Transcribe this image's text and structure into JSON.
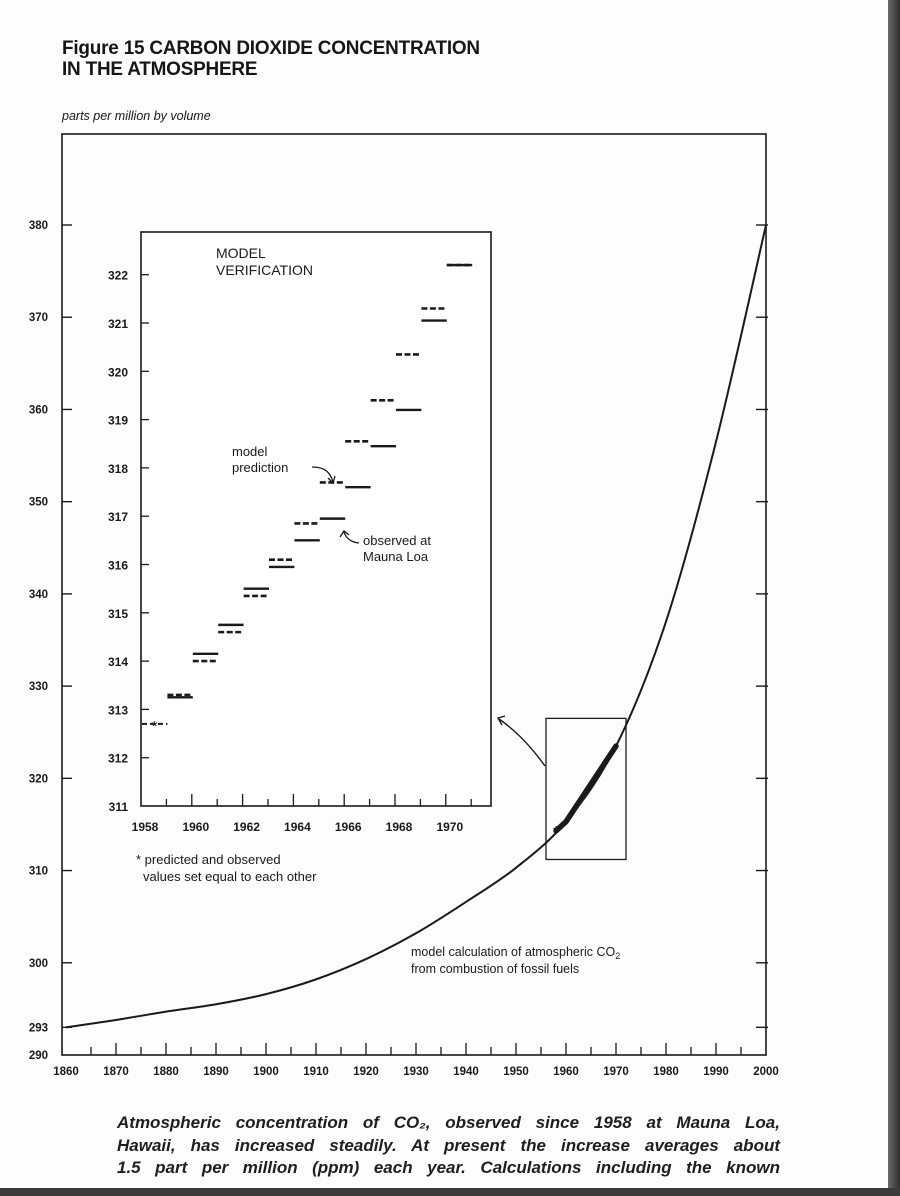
{
  "figure": {
    "title_line1": "Figure 15 CARBON DIOXIDE CONCENTRATION",
    "title_line2": "IN THE ATMOSPHERE",
    "subtitle": "parts per million by volume"
  },
  "caption": {
    "lines": [
      "Atmospheric concentration of CO₂, observed since 1958 at Mauna Loa,",
      "Hawaii, has increased steadily. At present the increase averages about",
      "1.5 part per million (ppm) each year. Calculations including the known"
    ]
  },
  "chart_data": [
    {
      "type": "line",
      "ylabel": "parts per million by volume",
      "xlim": [
        1860,
        2000
      ],
      "ylim": [
        290,
        380
      ],
      "x_ticks": [
        1860,
        1870,
        1880,
        1890,
        1900,
        1910,
        1920,
        1930,
        1940,
        1950,
        1960,
        1970,
        1980,
        1990,
        2000
      ],
      "y_ticks": [
        290,
        293,
        300,
        310,
        320,
        330,
        340,
        350,
        360,
        370,
        380
      ],
      "grid": false,
      "series": [
        {
          "name": "model calculation of atmospheric CO₂ from combustion of fossil fuels",
          "x": [
            1860,
            1870,
            1880,
            1890,
            1900,
            1910,
            1920,
            1930,
            1940,
            1950,
            1960,
            1970,
            1980,
            1990,
            2000
          ],
          "y": [
            293,
            293.8,
            294.7,
            295.5,
            296.6,
            298.2,
            300.4,
            303.2,
            306.6,
            310.3,
            315.3,
            323.5,
            337.0,
            356.5,
            380
          ]
        },
        {
          "name": "observed at Mauna Loa",
          "x_range": [
            1958,
            1970
          ],
          "style": "thick"
        }
      ],
      "annotations": {
        "curve_label_line1": "model calculation of atmospheric CO",
        "curve_label_sub": "2",
        "curve_label_line2": "from combustion of fossil fuels",
        "highlight_box": {
          "x": [
            1956,
            1972
          ],
          "y": [
            311.2,
            326.5
          ]
        }
      }
    },
    {
      "type": "step",
      "title_line1": "MODEL",
      "title_line2": "VERIFICATION",
      "xlim": [
        1958,
        1971.8
      ],
      "ylim": [
        311,
        323
      ],
      "x_ticks": [
        1958,
        1960,
        1962,
        1964,
        1966,
        1968,
        1970
      ],
      "y_ticks": [
        311,
        312,
        313,
        314,
        315,
        316,
        317,
        318,
        319,
        320,
        321,
        322
      ],
      "years": [
        1958,
        1959,
        1960,
        1961,
        1962,
        1963,
        1964,
        1965,
        1966,
        1967,
        1968,
        1969,
        1970
      ],
      "series": [
        {
          "name": "model prediction",
          "style": "dashed",
          "values": [
            312.7,
            313.3,
            314.0,
            314.6,
            315.35,
            316.1,
            316.85,
            317.7,
            318.55,
            319.4,
            320.35,
            321.3,
            322.2
          ]
        },
        {
          "name": "observed at Mauna Loa",
          "style": "solid",
          "values": [
            312.7,
            313.25,
            314.15,
            314.75,
            315.5,
            315.95,
            316.5,
            316.95,
            317.6,
            318.45,
            319.2,
            321.05,
            322.2
          ]
        }
      ],
      "labels": {
        "prediction_line1": "model",
        "prediction_line2": "prediction",
        "observed_line1": "observed at",
        "observed_line2": "Mauna Loa"
      },
      "footnote_line1": "* predicted and observed",
      "footnote_line2": "values set equal to each other"
    }
  ]
}
